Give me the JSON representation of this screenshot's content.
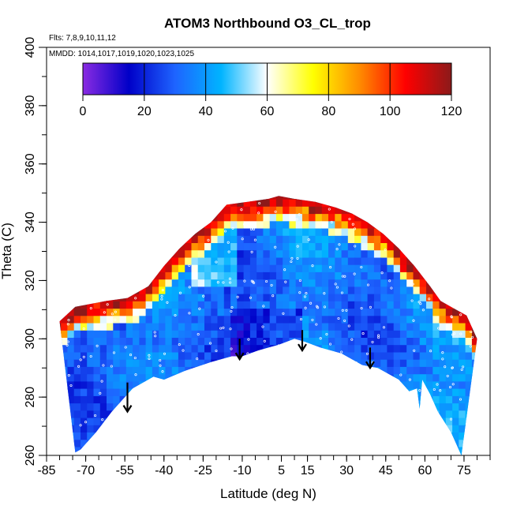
{
  "chart_data": {
    "type": "heatmap",
    "title": "ATOM3 Northbound O3_CL_trop",
    "flights_label": "Flts: 7,8,9,10,11,12",
    "dates_label": "MMDD: 1014,1017,1019,1020,1023,1025",
    "xlabel": "Latitude (deg N)",
    "ylabel": "Theta (C)",
    "xlim": [
      -85,
      85
    ],
    "ylim": [
      260,
      400
    ],
    "x_tick_labels": [
      "-85",
      "-70",
      "-55",
      "-40",
      "-25",
      "-10",
      "5",
      "15",
      "30",
      "45",
      "60",
      "75"
    ],
    "x_ticks": [
      -85,
      -70,
      -55,
      -40,
      -25,
      -10,
      5,
      15,
      30,
      45,
      60,
      75
    ],
    "y_ticks": [
      260,
      280,
      300,
      320,
      340,
      360,
      380,
      400
    ],
    "colorbar": {
      "min": 0,
      "max": 120,
      "ticks": [
        0,
        20,
        40,
        60,
        80,
        100,
        120
      ],
      "tick_labels": [
        "0",
        "20",
        "40",
        "60",
        "80",
        "100",
        "120"
      ],
      "colors": [
        "#8a2be2",
        "#0000c8",
        "#1e64ff",
        "#00b4ff",
        "#ffffff",
        "#ffff00",
        "#ff8c00",
        "#ff0000",
        "#8b1a1a"
      ]
    },
    "lower_boundary": [
      [
        -74,
        261
      ],
      [
        -72,
        262
      ],
      [
        -66,
        268
      ],
      [
        -60,
        275
      ],
      [
        -52,
        283
      ],
      [
        -44,
        287
      ],
      [
        -40,
        286
      ],
      [
        -32,
        289
      ],
      [
        -22,
        292
      ],
      [
        -14,
        294
      ],
      [
        -10,
        294
      ],
      [
        -4,
        296
      ],
      [
        0,
        297
      ],
      [
        4,
        298
      ],
      [
        10,
        300
      ],
      [
        14,
        299
      ],
      [
        20,
        297
      ],
      [
        28,
        295
      ],
      [
        36,
        291
      ],
      [
        42,
        290
      ],
      [
        50,
        286
      ],
      [
        54,
        282
      ],
      [
        57,
        283
      ],
      [
        58,
        276
      ],
      [
        59,
        286
      ],
      [
        62,
        281
      ],
      [
        65,
        275
      ],
      [
        70,
        268
      ],
      [
        74,
        260
      ]
    ],
    "upper_boundary": [
      [
        -80,
        306
      ],
      [
        -74,
        311
      ],
      [
        -68,
        312
      ],
      [
        -62,
        313
      ],
      [
        -54,
        314
      ],
      [
        -46,
        318
      ],
      [
        -40,
        325
      ],
      [
        -34,
        331
      ],
      [
        -28,
        336
      ],
      [
        -22,
        340
      ],
      [
        -16,
        346
      ],
      [
        -8,
        347
      ],
      [
        0,
        348
      ],
      [
        4,
        349
      ],
      [
        10,
        348
      ],
      [
        18,
        347
      ],
      [
        26,
        345
      ],
      [
        32,
        343
      ],
      [
        38,
        340
      ],
      [
        44,
        336
      ],
      [
        50,
        331
      ],
      [
        56,
        325
      ],
      [
        62,
        318
      ],
      [
        66,
        313
      ],
      [
        70,
        311
      ],
      [
        76,
        308
      ],
      [
        80,
        300
      ]
    ],
    "arrows": [
      {
        "lat": -54,
        "theta_top": 285,
        "theta_tip": 275
      },
      {
        "lat": -11,
        "theta_top": 300,
        "theta_tip": 293
      },
      {
        "lat": 13,
        "theta_top": 303,
        "theta_tip": 296
      },
      {
        "lat": 39,
        "theta_top": 297,
        "theta_tip": 290
      }
    ]
  }
}
